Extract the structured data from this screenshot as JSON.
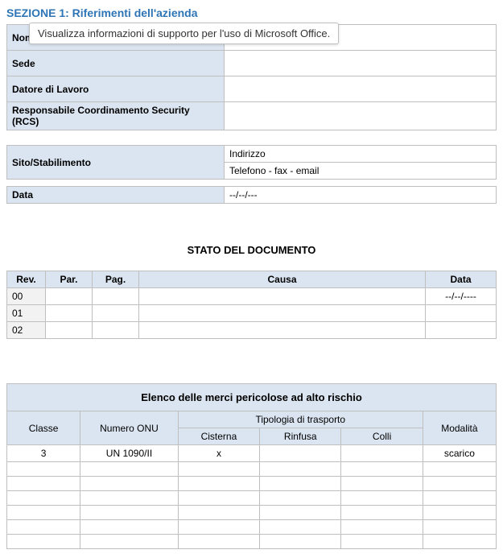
{
  "section_title": "SEZIONE 1: Riferimenti dell'azienda",
  "tooltip": "Visualizza informazioni di supporto per l'uso di Microsoft Office.",
  "company": {
    "fields": [
      {
        "label": "Nome azienda / ragione sociale",
        "value": ""
      },
      {
        "label": "Sede",
        "value": ""
      },
      {
        "label": "Datore di Lavoro",
        "value": ""
      },
      {
        "label": "Responsabile Coordinamento Security (RCS)",
        "value": ""
      }
    ]
  },
  "site": {
    "label": "Sito/Stabilimento",
    "addr_label": "Indirizzo",
    "contact_label": "Telefono - fax - email"
  },
  "date_row": {
    "label": "Data",
    "value": "--/--/---"
  },
  "doc_status": {
    "title": "STATO DEL DOCUMENTO",
    "headers": {
      "rev": "Rev.",
      "par": "Par.",
      "pag": "Pag.",
      "causa": "Causa",
      "data": "Data"
    },
    "rows": [
      {
        "rev": "00",
        "par": "",
        "pag": "",
        "causa": "",
        "data": "--/--/----"
      },
      {
        "rev": "01",
        "par": "",
        "pag": "",
        "causa": "",
        "data": ""
      },
      {
        "rev": "02",
        "par": "",
        "pag": "",
        "causa": "",
        "data": ""
      }
    ]
  },
  "goods": {
    "title": "Elenco delle merci pericolose ad alto rischio",
    "headers": {
      "classe": "Classe",
      "onu": "Numero ONU",
      "tipologia": "Tipologia di trasporto",
      "cisterna": "Cisterna",
      "rinfusa": "Rinfusa",
      "colli": "Colli",
      "modalita": "Modalità"
    },
    "rows": [
      {
        "classe": "3",
        "onu": "UN 1090/II",
        "cisterna": "x",
        "rinfusa": "",
        "colli": "",
        "modalita": "scarico"
      },
      {
        "classe": "",
        "onu": "",
        "cisterna": "",
        "rinfusa": "",
        "colli": "",
        "modalita": ""
      },
      {
        "classe": "",
        "onu": "",
        "cisterna": "",
        "rinfusa": "",
        "colli": "",
        "modalita": ""
      },
      {
        "classe": "",
        "onu": "",
        "cisterna": "",
        "rinfusa": "",
        "colli": "",
        "modalita": ""
      },
      {
        "classe": "",
        "onu": "",
        "cisterna": "",
        "rinfusa": "",
        "colli": "",
        "modalita": ""
      },
      {
        "classe": "",
        "onu": "",
        "cisterna": "",
        "rinfusa": "",
        "colli": "",
        "modalita": ""
      },
      {
        "classe": "",
        "onu": "",
        "cisterna": "",
        "rinfusa": "",
        "colli": "",
        "modalita": ""
      }
    ]
  }
}
